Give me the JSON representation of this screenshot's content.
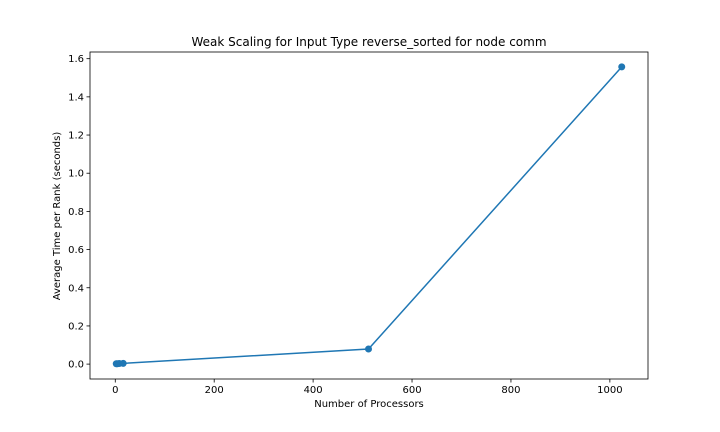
{
  "chart_data": {
    "type": "line",
    "title": "Weak Scaling for Input Type reverse_sorted for node comm",
    "xlabel": "Number of Processors",
    "ylabel": "Average Time per Rank (seconds)",
    "xlim": [
      -51.1,
      1077.1
    ],
    "ylim": [
      -0.078,
      1.635
    ],
    "xticks": [
      0,
      200,
      400,
      600,
      800,
      1000
    ],
    "xtick_labels": [
      "0",
      "200",
      "400",
      "600",
      "800",
      "1000"
    ],
    "yticks": [
      0.0,
      0.2,
      0.4,
      0.6,
      0.8,
      1.0,
      1.2,
      1.4,
      1.6
    ],
    "ytick_labels": [
      "0.0",
      "0.2",
      "0.4",
      "0.6",
      "0.8",
      "1.0",
      "1.2",
      "1.4",
      "1.6"
    ],
    "grid": false,
    "series": [
      {
        "color": "#1f77b4",
        "marker": "circle",
        "x": [
          2,
          4,
          8,
          16,
          512,
          1024
        ],
        "y": [
          0.002,
          0.002,
          0.003,
          0.004,
          0.079,
          1.557
        ]
      }
    ]
  }
}
